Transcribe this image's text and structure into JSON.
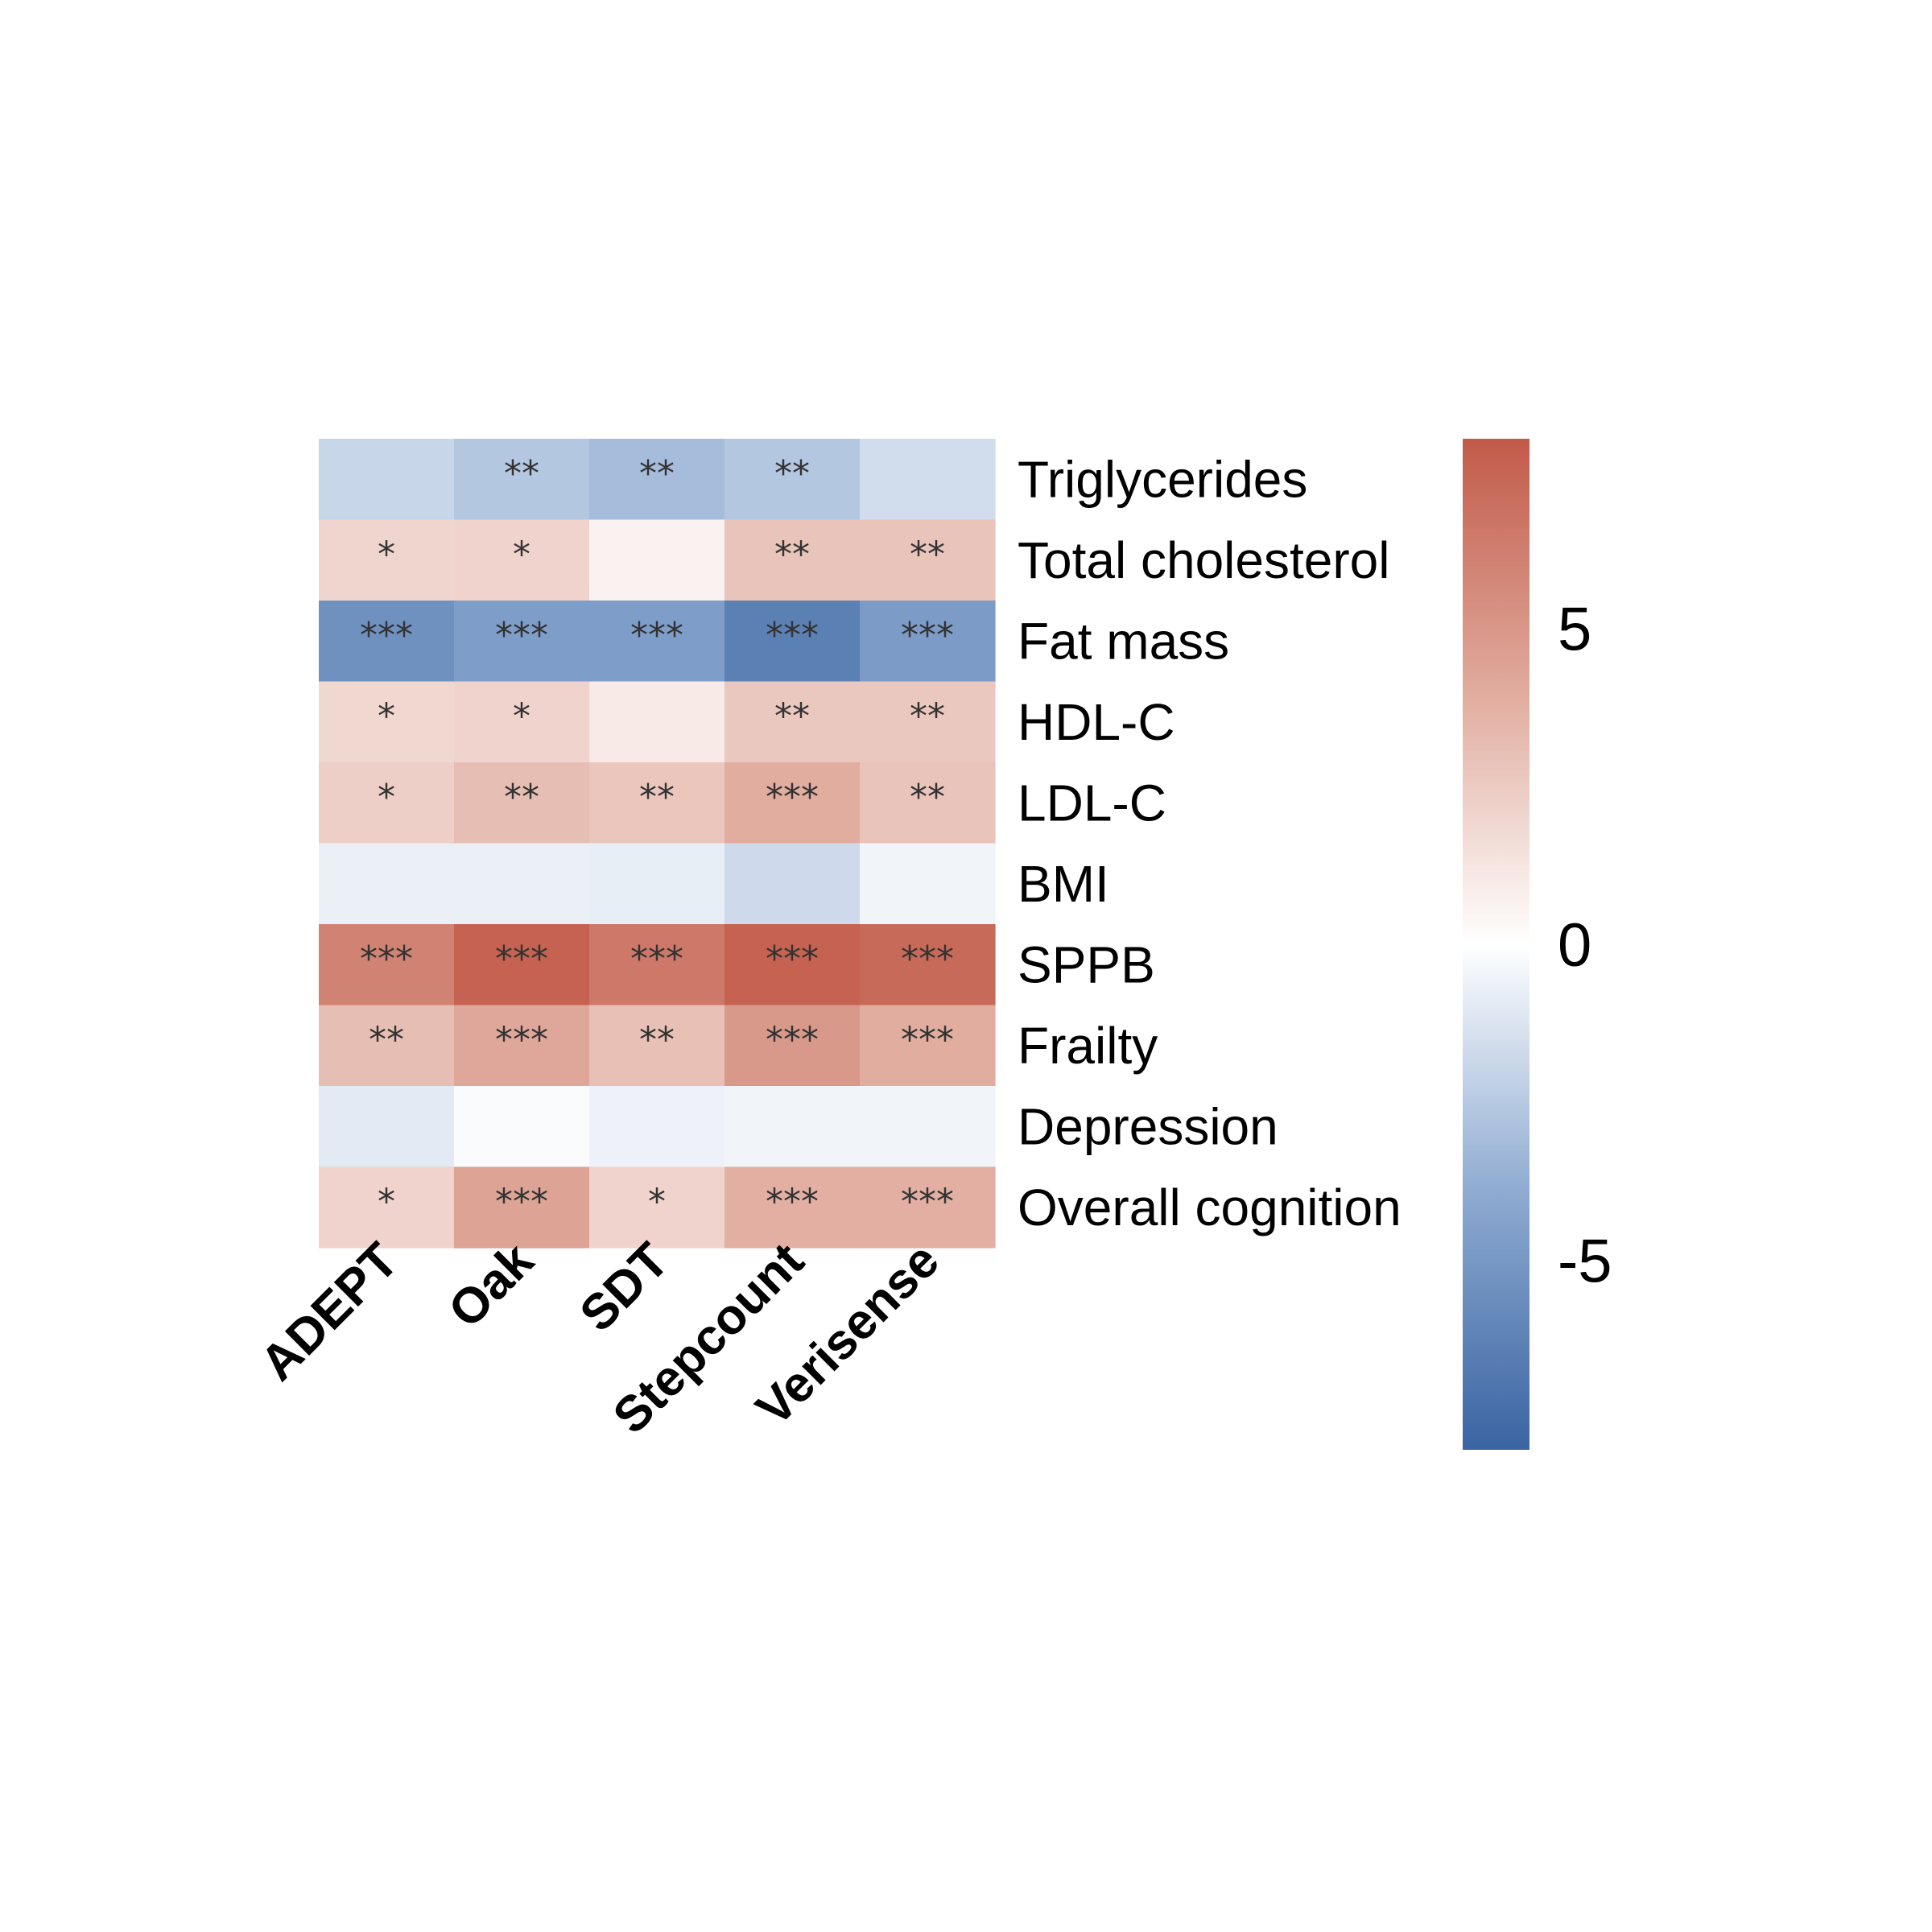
{
  "chart_data": {
    "type": "heatmap",
    "columns": [
      "ADEPT",
      "Oak",
      "SDT",
      "Stepcount",
      "Verisense"
    ],
    "rows": [
      "Triglycerides",
      "Total cholesterol",
      "Fat mass",
      "HDL-C",
      "LDL-C",
      "BMI",
      "SPPB",
      "Frailty",
      "Depression",
      "Overall cognition"
    ],
    "values": [
      [
        -1.9,
        -2.6,
        -3.1,
        -2.6,
        -1.6
      ],
      [
        2.0,
        2.1,
        0.6,
        2.8,
        2.8
      ],
      [
        -5.4,
        -4.7,
        -4.7,
        -6.4,
        -4.8
      ],
      [
        1.9,
        2.1,
        1.0,
        2.6,
        2.6
      ],
      [
        2.3,
        3.1,
        2.7,
        3.9,
        2.8
      ],
      [
        -0.7,
        -0.7,
        -0.8,
        -1.7,
        -0.5
      ],
      [
        6.0,
        7.6,
        6.5,
        7.6,
        7.2
      ],
      [
        3.1,
        4.2,
        3.0,
        4.9,
        3.9
      ],
      [
        -1.0,
        -0.2,
        -0.6,
        -0.5,
        -0.5
      ],
      [
        2.1,
        4.4,
        2.1,
        3.8,
        3.8
      ]
    ],
    "annotations": [
      [
        "",
        "**",
        "**",
        "**",
        ""
      ],
      [
        "*",
        "*",
        "",
        "**",
        "**"
      ],
      [
        "***",
        "***",
        "***",
        "***",
        "***"
      ],
      [
        "*",
        "*",
        "",
        "**",
        "**"
      ],
      [
        "*",
        "**",
        "**",
        "***",
        "**"
      ],
      [
        "",
        "",
        "",
        "",
        ""
      ],
      [
        "***",
        "***",
        "***",
        "***",
        "***"
      ],
      [
        "**",
        "***",
        "**",
        "***",
        "***"
      ],
      [
        "",
        "",
        "",
        "",
        ""
      ],
      [
        "*",
        "***",
        "*",
        "***",
        "***"
      ]
    ],
    "colorbar": {
      "range": [
        -8,
        8
      ],
      "ticks": [
        5,
        0,
        -5
      ],
      "tick_labels": [
        "5",
        "0",
        "-5"
      ],
      "colors": {
        "low": "#3a64a2",
        "mid": "#ffffff",
        "high": "#c25a49"
      }
    },
    "title": "",
    "xlabel": "",
    "ylabel": ""
  }
}
